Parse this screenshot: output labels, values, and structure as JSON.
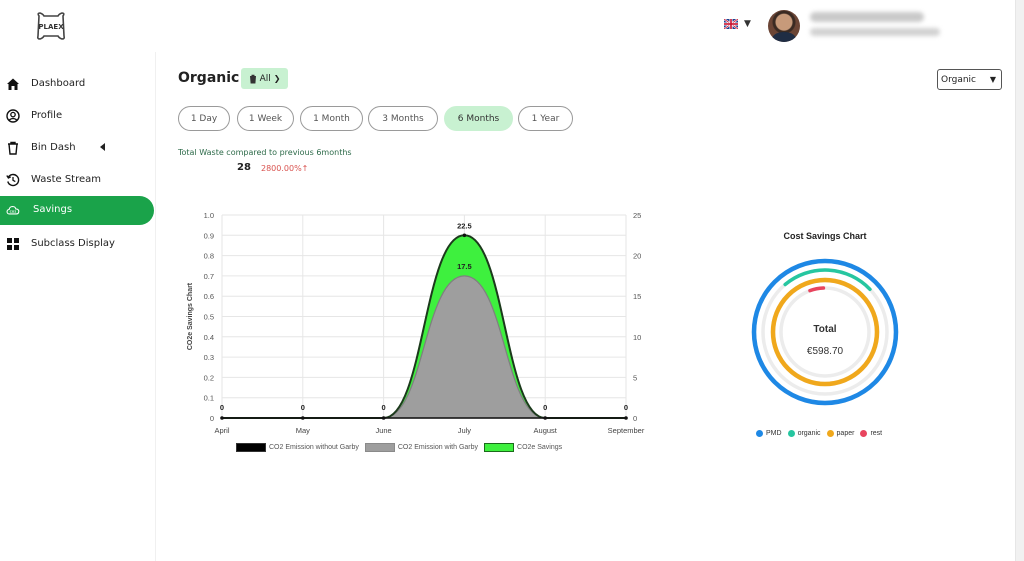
{
  "brand": {
    "logo_text": "PLAEX"
  },
  "header": {
    "language": "en-GB",
    "flag_icon": "uk-flag-icon"
  },
  "sidebar": {
    "items": [
      {
        "label": "Dashboard",
        "icon": "home-icon"
      },
      {
        "label": "Profile",
        "icon": "user-circle-icon"
      },
      {
        "label": "Bin Dash",
        "icon": "trash-icon"
      },
      {
        "label": "Waste Stream",
        "icon": "history-icon"
      },
      {
        "label": "Savings",
        "icon": "co2-cloud-icon",
        "active": true
      },
      {
        "label": "Subclass Display",
        "icon": "grid-icon"
      }
    ]
  },
  "main": {
    "title": "Organic",
    "filter_label": "All",
    "category_select": "Organic",
    "ranges": [
      "1 Day",
      "1 Week",
      "1 Month",
      "3 Months",
      "6 Months",
      "1 Year"
    ],
    "active_range": "6 Months",
    "stats": {
      "caption": "Total Waste compared to previous 6months",
      "value": "28",
      "change": "2800.00%↑"
    }
  },
  "chart_data": [
    {
      "type": "area",
      "ylabel": "CO2e Savings Chart",
      "categories": [
        "April",
        "May",
        "June",
        "July",
        "August",
        "September"
      ],
      "y_left_ticks": [
        "1.0",
        "0.9",
        "0.8",
        "0.7",
        "0.6",
        "0.5",
        "0.4",
        "0.3",
        "0.2",
        "0.1",
        "0"
      ],
      "y_right_ticks": [
        "25",
        "20",
        "15",
        "10",
        "5",
        "0"
      ],
      "ylim_left": [
        0,
        1.0
      ],
      "ylim_right": [
        0,
        25
      ],
      "series": [
        {
          "name": "CO2 Emission without Garby",
          "values": [
            0,
            0,
            0,
            22.5,
            0,
            0
          ],
          "color": "#000000"
        },
        {
          "name": "CO2 Emission with Garby",
          "values": [
            0,
            0,
            0,
            17.5,
            0,
            0
          ],
          "color": "#9e9e9e"
        },
        {
          "name": "CO2e Savings",
          "values": [
            0,
            0,
            0,
            5,
            0,
            0
          ],
          "color": "#3ef03e"
        }
      ],
      "data_labels": [
        "0",
        "0",
        "0",
        "22.5",
        "17.5",
        "0",
        "0"
      ],
      "grid": true,
      "legend": "bottom"
    },
    {
      "type": "pie",
      "title": "Cost Savings Chart",
      "center_label": "Total",
      "center_value": "€598.70",
      "series": [
        {
          "name": "PMD",
          "fraction": 1.0,
          "color": "#1e88e5"
        },
        {
          "name": "organic",
          "fraction": 0.24,
          "color": "#26c6a0"
        },
        {
          "name": "paper",
          "fraction": 1.0,
          "color": "#f0a81c"
        },
        {
          "name": "rest",
          "fraction": 0.05,
          "color": "#e8445e"
        }
      ],
      "legend": "bottom"
    }
  ]
}
